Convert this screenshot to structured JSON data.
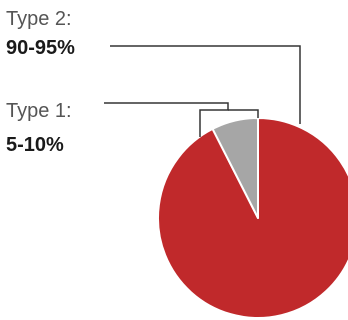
{
  "chart_data": {
    "type": "pie",
    "categories": [
      "Type 2:",
      "Type 1:"
    ],
    "value_labels": [
      "90-95%",
      "5-10%"
    ],
    "values": [
      92.5,
      7.5
    ],
    "colors": [
      "#c0292b",
      "#a6a6a6"
    ],
    "slice_border_color": "#ffffff",
    "leader_line_color": "#333333",
    "legend": "none",
    "grid": false
  }
}
